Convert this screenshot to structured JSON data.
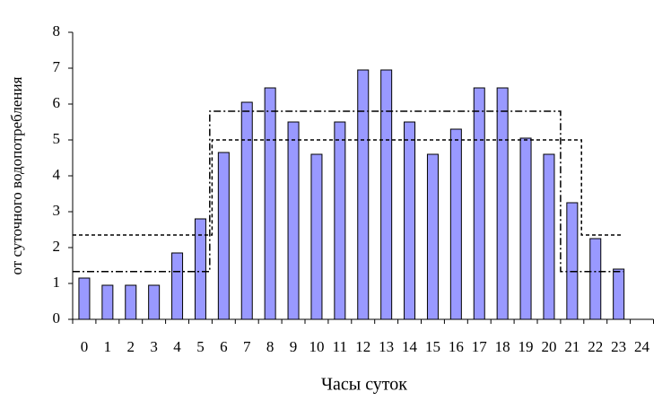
{
  "chart_data": {
    "type": "bar",
    "x_label": "Часы суток",
    "y_label": "от суточного водопотребления",
    "categories": [
      "0",
      "1",
      "2",
      "3",
      "4",
      "5",
      "6",
      "7",
      "8",
      "9",
      "10",
      "11",
      "12",
      "13",
      "14",
      "15",
      "16",
      "17",
      "18",
      "19",
      "20",
      "21",
      "22",
      "23",
      "24"
    ],
    "values": [
      1.15,
      0.95,
      0.95,
      0.95,
      1.85,
      2.8,
      4.65,
      6.05,
      6.45,
      5.5,
      4.6,
      5.5,
      6.95,
      6.95,
      5.5,
      4.6,
      5.3,
      6.45,
      6.45,
      5.05,
      4.6,
      3.25,
      2.25,
      1.4,
      null
    ],
    "color": "#9999ff",
    "ylim": [
      0,
      8
    ],
    "yticks": [
      0,
      1,
      2,
      3,
      4,
      5,
      6,
      7,
      8
    ],
    "step_lines": [
      {
        "style": "dashed",
        "x": [
          -0.5,
          5.5,
          5.5,
          21.4,
          21.4,
          23.2
        ],
        "values": [
          2.35,
          2.35,
          5,
          5,
          2.35,
          2.35
        ]
      },
      {
        "style": "dashdot",
        "x": [
          -0.5,
          5.4,
          5.4,
          20.5,
          20.5,
          23.2
        ],
        "values": [
          1.33,
          1.33,
          5.8,
          5.8,
          1.33,
          1.33
        ]
      }
    ]
  }
}
